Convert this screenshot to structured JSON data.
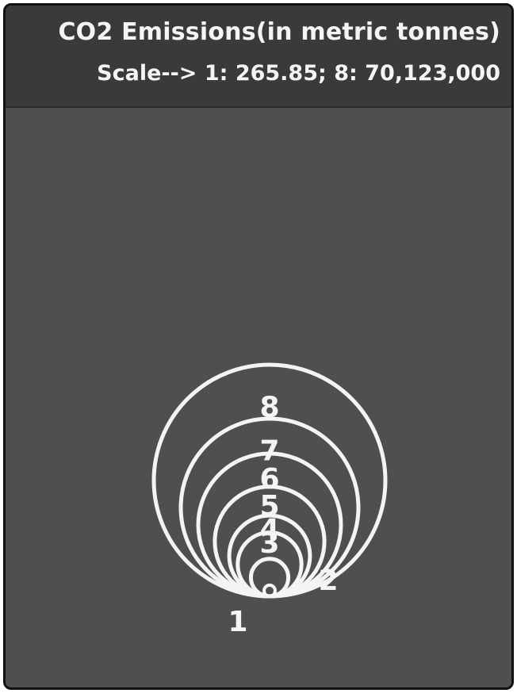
{
  "header": {
    "title": "CO2 Emissions(in metric tonnes)",
    "scale": "Scale--> 1:  265.85; 8:  70,123,000"
  },
  "chart_data": {
    "type": "bubble",
    "title": "CO2 Emissions(in metric tonnes)",
    "subtitle": "Scale--> 1:  265.85; 8:  70,123,000",
    "unit": "metric tonnes",
    "scale_min": {
      "label": "1",
      "value": 265.85
    },
    "scale_max": {
      "label": "8",
      "value": 70123000
    },
    "bubbles": [
      {
        "label": "1",
        "value": 265.85
      },
      {
        "label": "2",
        "value": 1000000
      },
      {
        "label": "3",
        "value": 4000000
      },
      {
        "label": "4",
        "value": 7000000
      },
      {
        "label": "5",
        "value": 14000000
      },
      {
        "label": "6",
        "value": 25000000
      },
      {
        "label": "7",
        "value": 40000000
      },
      {
        "label": "8",
        "value": 70123000
      }
    ],
    "colors": {
      "background": "#4f4f4f",
      "header": "#3a3a3a",
      "stroke": "#f4f4f4",
      "text": "#f4f4f4"
    }
  }
}
